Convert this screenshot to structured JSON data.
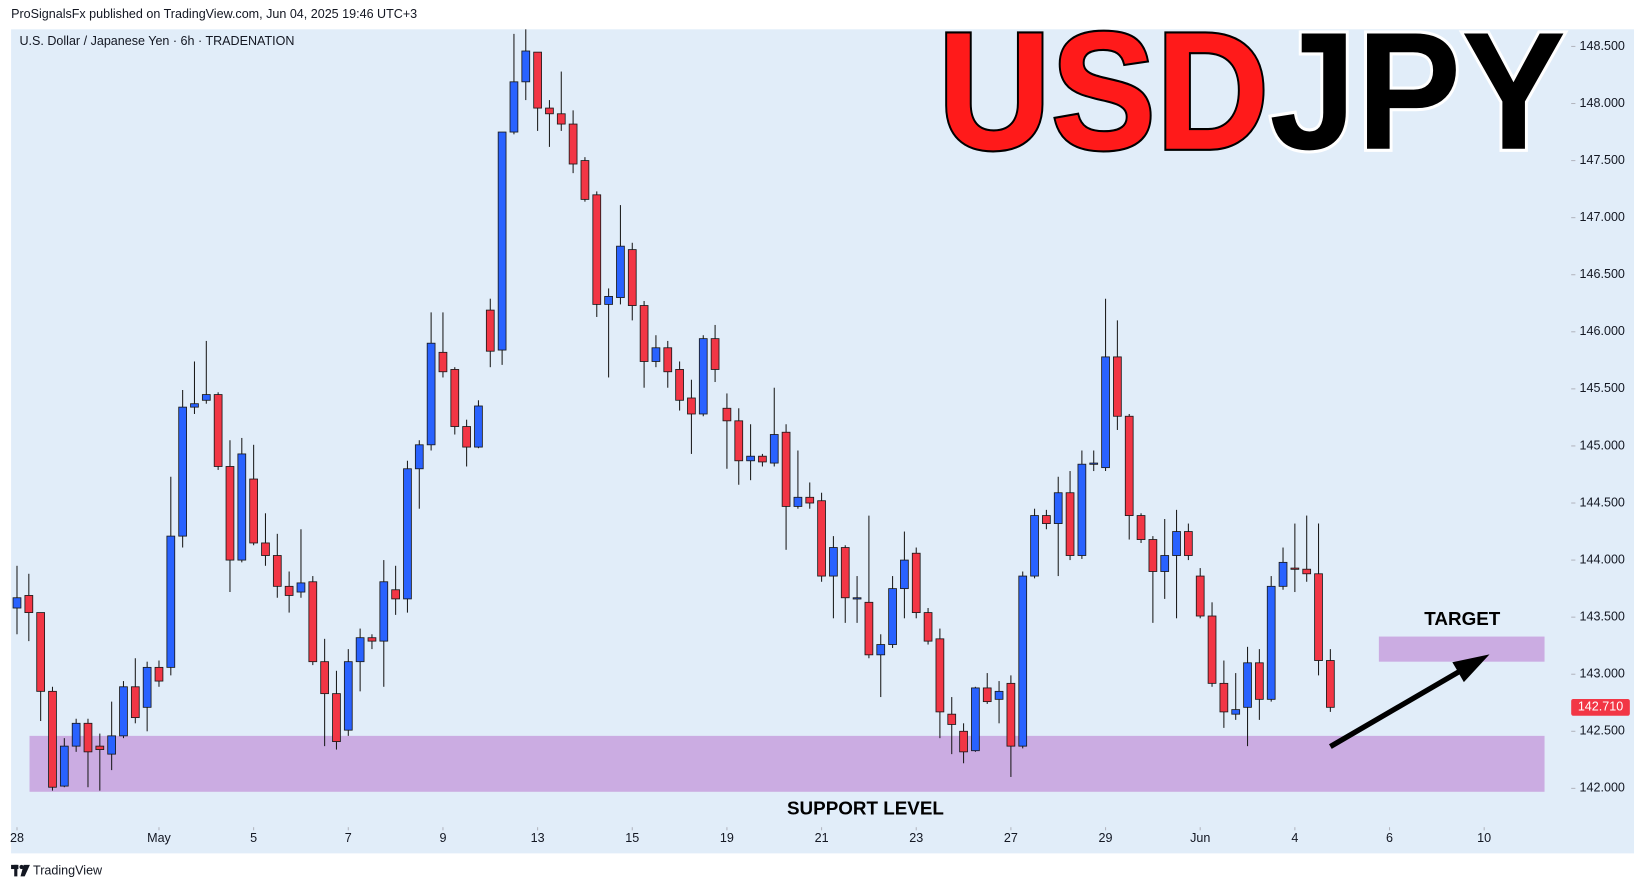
{
  "header": "ProSignalsFx published on TradingView.com, Jun 04, 2025 19:46 UTC+3",
  "footer": "TradingView",
  "chart_data": {
    "type": "candlestick",
    "title": [
      "USD",
      "JPY"
    ],
    "subtitle": "U.S. Dollar / Japanese Yen · 6h · TRADENATION",
    "up_color": "#2962ff",
    "down_color": "#f23645",
    "zone_color": "#c9a4df",
    "grid": false,
    "open": [
      143.58,
      143.69,
      143.54,
      142.85,
      142.02,
      142.37,
      142.57,
      142.37,
      142.3,
      142.46,
      142.89,
      142.71,
      143.06,
      143.06,
      144.21,
      145.34,
      145.4,
      145.45,
      144.82,
      144.0,
      144.71,
      144.15,
      144.04,
      143.77,
      143.72,
      143.81,
      143.11,
      142.83,
      142.51,
      143.11,
      143.32,
      143.29,
      143.74,
      143.66,
      144.8,
      145.01,
      145.82,
      145.67,
      145.17,
      144.99,
      146.19,
      145.84,
      147.75,
      148.19,
      148.45,
      147.96,
      147.91,
      147.82,
      147.5,
      147.2,
      146.24,
      146.3,
      146.72,
      146.23,
      145.74,
      145.86,
      145.67,
      145.42,
      145.28,
      145.94,
      145.33,
      145.22,
      144.87,
      144.91,
      144.85,
      145.12,
      144.47,
      144.55,
      144.52,
      143.86,
      144.11,
      143.66,
      143.63,
      143.17,
      143.26,
      143.75,
      144.06,
      143.54,
      143.31,
      142.65,
      142.5,
      142.33,
      142.88,
      142.78,
      142.92,
      142.37,
      143.86,
      144.39,
      144.32,
      144.59,
      144.04,
      144.84,
      144.81,
      145.78,
      145.26,
      144.39,
      144.18,
      143.9,
      144.04,
      144.25,
      143.86,
      143.51,
      142.92,
      142.65,
      142.71,
      143.1,
      142.78,
      143.77,
      143.93,
      143.92,
      143.88,
      143.12
    ],
    "high": [
      143.95,
      143.88,
      143.54,
      142.89,
      142.44,
      142.61,
      142.61,
      142.48,
      142.76,
      142.94,
      143.14,
      143.11,
      143.12,
      144.73,
      145.49,
      145.74,
      145.92,
      145.47,
      145.05,
      145.07,
      145.01,
      144.41,
      144.23,
      143.9,
      144.27,
      143.86,
      143.31,
      143.03,
      143.22,
      143.4,
      143.35,
      144.0,
      143.95,
      144.87,
      145.05,
      146.17,
      146.17,
      145.69,
      145.23,
      145.4,
      146.29,
      147.75,
      148.61,
      148.65,
      148.45,
      148.03,
      148.28,
      147.94,
      147.53,
      147.23,
      146.38,
      147.11,
      146.78,
      146.27,
      145.97,
      145.92,
      145.74,
      145.58,
      145.97,
      146.06,
      145.46,
      145.33,
      145.19,
      144.93,
      145.51,
      145.19,
      144.96,
      144.68,
      144.59,
      144.21,
      144.13,
      143.86,
      144.39,
      143.35,
      143.86,
      144.25,
      144.11,
      143.58,
      143.4,
      142.8,
      142.57,
      142.89,
      143.01,
      142.94,
      142.99,
      143.9,
      144.45,
      144.44,
      144.73,
      144.78,
      144.96,
      144.96,
      146.29,
      146.1,
      145.28,
      144.41,
      144.21,
      144.36,
      144.44,
      144.32,
      143.93,
      143.63,
      143.12,
      143.01,
      143.24,
      143.22,
      143.86,
      144.11,
      144.32,
      144.39,
      144.32,
      143.22
    ],
    "low": [
      143.35,
      143.29,
      142.59,
      141.98,
      142.01,
      142.32,
      142.01,
      141.98,
      142.16,
      142.44,
      142.57,
      142.5,
      142.89,
      142.99,
      144.11,
      145.28,
      145.37,
      144.79,
      143.72,
      143.98,
      144.13,
      143.95,
      143.67,
      143.54,
      143.67,
      143.08,
      142.37,
      142.34,
      142.46,
      142.85,
      143.22,
      142.89,
      143.52,
      143.54,
      144.45,
      144.96,
      145.6,
      145.1,
      144.82,
      144.98,
      145.69,
      145.71,
      147.73,
      148.03,
      147.76,
      147.62,
      147.76,
      147.39,
      147.14,
      146.13,
      145.6,
      146.24,
      146.1,
      145.51,
      145.69,
      145.51,
      145.31,
      144.93,
      145.26,
      145.56,
      144.8,
      144.66,
      144.7,
      144.82,
      144.82,
      144.09,
      144.45,
      144.45,
      143.81,
      143.49,
      143.45,
      143.45,
      143.14,
      142.8,
      143.23,
      143.49,
      143.49,
      143.26,
      142.44,
      142.3,
      142.22,
      142.32,
      142.74,
      142.57,
      142.1,
      142.35,
      143.84,
      144.27,
      143.86,
      144.0,
      144.01,
      144.78,
      144.78,
      145.14,
      144.18,
      144.15,
      143.45,
      143.66,
      143.49,
      144.0,
      143.49,
      142.89,
      142.53,
      142.6,
      142.37,
      142.6,
      142.76,
      143.74,
      143.72,
      143.81,
      142.99,
      142.67
    ],
    "close": [
      143.67,
      143.54,
      142.85,
      142.01,
      142.37,
      142.57,
      142.32,
      142.34,
      142.46,
      142.89,
      142.62,
      143.06,
      142.94,
      144.21,
      145.34,
      145.37,
      145.45,
      144.82,
      144.0,
      144.93,
      144.15,
      144.04,
      143.77,
      143.69,
      143.8,
      143.11,
      142.83,
      142.41,
      143.11,
      143.32,
      143.29,
      143.81,
      143.66,
      144.8,
      145.01,
      145.9,
      145.65,
      145.17,
      144.99,
      145.35,
      145.83,
      147.75,
      148.19,
      148.46,
      147.96,
      147.91,
      147.82,
      147.47,
      147.16,
      146.24,
      146.31,
      146.75,
      146.23,
      145.74,
      145.86,
      145.65,
      145.4,
      145.28,
      145.94,
      145.67,
      145.22,
      144.87,
      144.91,
      144.86,
      145.1,
      144.47,
      144.55,
      144.5,
      143.86,
      144.11,
      143.67,
      143.67,
      143.17,
      143.26,
      143.75,
      144.0,
      143.54,
      143.29,
      142.67,
      142.56,
      142.32,
      142.88,
      142.76,
      142.85,
      142.37,
      143.86,
      144.39,
      144.32,
      144.59,
      144.04,
      144.84,
      144.85,
      145.78,
      145.26,
      144.39,
      144.18,
      143.9,
      144.04,
      144.25,
      144.04,
      143.51,
      142.92,
      142.67,
      142.69,
      143.1,
      142.78,
      143.77,
      143.98,
      143.92,
      143.88,
      143.12,
      142.71
    ],
    "last_price": {
      "value": 142.71,
      "label": "142.710"
    },
    "zones": [
      {
        "label": "SUPPORT LEVEL",
        "low": 141.97,
        "high": 142.46
      },
      {
        "label": "TARGET",
        "low": 143.11,
        "high": 143.33
      }
    ],
    "xlim": [
      -0.5,
      131
    ],
    "xticks": [
      {
        "value": 0,
        "label": "28"
      },
      {
        "value": 12,
        "label": "May"
      },
      {
        "value": 20,
        "label": "5"
      },
      {
        "value": 28,
        "label": "7"
      },
      {
        "value": 36,
        "label": "9"
      },
      {
        "value": 44,
        "label": "13"
      },
      {
        "value": 52,
        "label": "15"
      },
      {
        "value": 60,
        "label": "19"
      },
      {
        "value": 68,
        "label": "21"
      },
      {
        "value": 76,
        "label": "23"
      },
      {
        "value": 84,
        "label": "27"
      },
      {
        "value": 92,
        "label": "29"
      },
      {
        "value": 100,
        "label": "Jun"
      },
      {
        "value": 108,
        "label": "4"
      },
      {
        "value": 116,
        "label": "6"
      },
      {
        "value": 124,
        "label": "10"
      }
    ],
    "ylim": [
      141.66,
      148.65
    ],
    "yticks": [
      {
        "value": 142,
        "label": "142.000"
      },
      {
        "value": 142.5,
        "label": "142.500"
      },
      {
        "value": 143,
        "label": "143.000"
      },
      {
        "value": 143.5,
        "label": "143.500"
      },
      {
        "value": 144,
        "label": "144.000"
      },
      {
        "value": 144.5,
        "label": "144.500"
      },
      {
        "value": 145,
        "label": "145.000"
      },
      {
        "value": 145.5,
        "label": "145.500"
      },
      {
        "value": 146,
        "label": "146.000"
      },
      {
        "value": 146.5,
        "label": "146.500"
      },
      {
        "value": 147,
        "label": "147.000"
      },
      {
        "value": 147.5,
        "label": "147.500"
      },
      {
        "value": 148,
        "label": "148.000"
      },
      {
        "value": 148.5,
        "label": "148.500"
      }
    ]
  }
}
